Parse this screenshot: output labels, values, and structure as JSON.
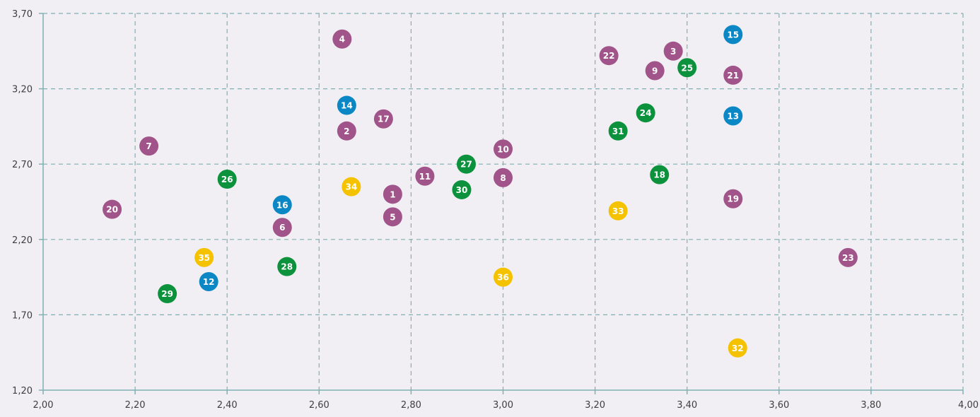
{
  "chart_data": {
    "type": "scatter",
    "title": "",
    "xlabel": "",
    "ylabel": "",
    "xlim": [
      2.0,
      4.0
    ],
    "ylim": [
      1.2,
      3.7
    ],
    "x_ticks": [
      2.0,
      2.2,
      2.4,
      2.6,
      2.8,
      3.0,
      3.2,
      3.4,
      3.6,
      3.8,
      4.0
    ],
    "x_tick_labels": [
      "2,00",
      "2,20",
      "2,40",
      "2,60",
      "2,80",
      "3,00",
      "3,20",
      "3,40",
      "3,60",
      "3,80",
      "4,00"
    ],
    "y_ticks": [
      1.2,
      1.7,
      2.2,
      2.7,
      3.2,
      3.7
    ],
    "y_tick_labels": [
      "1,20",
      "1,70",
      "2,20",
      "2,70",
      "3,20",
      "3,70"
    ],
    "grid": true,
    "legend": false,
    "colors": {
      "purple": "#a0548a",
      "blue": "#0a87c4",
      "green": "#0c913c",
      "yellow": "#f5c200",
      "grid": "#7fb0b3",
      "axis": "#7fb0b3"
    },
    "points": [
      {
        "label": "1",
        "x": 2.76,
        "y": 2.5,
        "color": "purple"
      },
      {
        "label": "2",
        "x": 2.66,
        "y": 2.92,
        "color": "purple"
      },
      {
        "label": "3",
        "x": 3.37,
        "y": 3.45,
        "color": "purple"
      },
      {
        "label": "4",
        "x": 2.65,
        "y": 3.53,
        "color": "purple"
      },
      {
        "label": "5",
        "x": 2.76,
        "y": 2.35,
        "color": "purple"
      },
      {
        "label": "6",
        "x": 2.52,
        "y": 2.28,
        "color": "purple"
      },
      {
        "label": "7",
        "x": 2.23,
        "y": 2.82,
        "color": "purple"
      },
      {
        "label": "8",
        "x": 3.0,
        "y": 2.61,
        "color": "purple"
      },
      {
        "label": "9",
        "x": 3.33,
        "y": 3.32,
        "color": "purple"
      },
      {
        "label": "10",
        "x": 3.0,
        "y": 2.8,
        "color": "purple"
      },
      {
        "label": "11",
        "x": 2.83,
        "y": 2.62,
        "color": "purple"
      },
      {
        "label": "12",
        "x": 2.36,
        "y": 1.92,
        "color": "blue"
      },
      {
        "label": "13",
        "x": 3.5,
        "y": 3.02,
        "color": "blue"
      },
      {
        "label": "14",
        "x": 2.66,
        "y": 3.09,
        "color": "blue"
      },
      {
        "label": "15",
        "x": 3.5,
        "y": 3.56,
        "color": "blue"
      },
      {
        "label": "16",
        "x": 2.52,
        "y": 2.43,
        "color": "blue"
      },
      {
        "label": "17",
        "x": 2.74,
        "y": 3.0,
        "color": "purple"
      },
      {
        "label": "18",
        "x": 3.34,
        "y": 2.63,
        "color": "green"
      },
      {
        "label": "19",
        "x": 3.5,
        "y": 2.47,
        "color": "purple"
      },
      {
        "label": "20",
        "x": 2.15,
        "y": 2.4,
        "color": "purple"
      },
      {
        "label": "21",
        "x": 3.5,
        "y": 3.29,
        "color": "purple"
      },
      {
        "label": "22",
        "x": 3.23,
        "y": 3.42,
        "color": "purple"
      },
      {
        "label": "23",
        "x": 3.75,
        "y": 2.08,
        "color": "purple"
      },
      {
        "label": "24",
        "x": 3.31,
        "y": 3.04,
        "color": "green"
      },
      {
        "label": "25",
        "x": 3.4,
        "y": 3.34,
        "color": "green"
      },
      {
        "label": "26",
        "x": 2.4,
        "y": 2.6,
        "color": "green"
      },
      {
        "label": "27",
        "x": 2.92,
        "y": 2.7,
        "color": "green"
      },
      {
        "label": "28",
        "x": 2.53,
        "y": 2.02,
        "color": "green"
      },
      {
        "label": "29",
        "x": 2.27,
        "y": 1.84,
        "color": "green"
      },
      {
        "label": "30",
        "x": 2.91,
        "y": 2.53,
        "color": "green"
      },
      {
        "label": "31",
        "x": 3.25,
        "y": 2.92,
        "color": "green"
      },
      {
        "label": "32",
        "x": 3.51,
        "y": 1.48,
        "color": "yellow"
      },
      {
        "label": "33",
        "x": 3.25,
        "y": 2.39,
        "color": "yellow"
      },
      {
        "label": "34",
        "x": 2.67,
        "y": 2.55,
        "color": "yellow"
      },
      {
        "label": "35",
        "x": 2.35,
        "y": 2.08,
        "color": "yellow"
      },
      {
        "label": "36",
        "x": 3.0,
        "y": 1.95,
        "color": "yellow"
      }
    ]
  }
}
